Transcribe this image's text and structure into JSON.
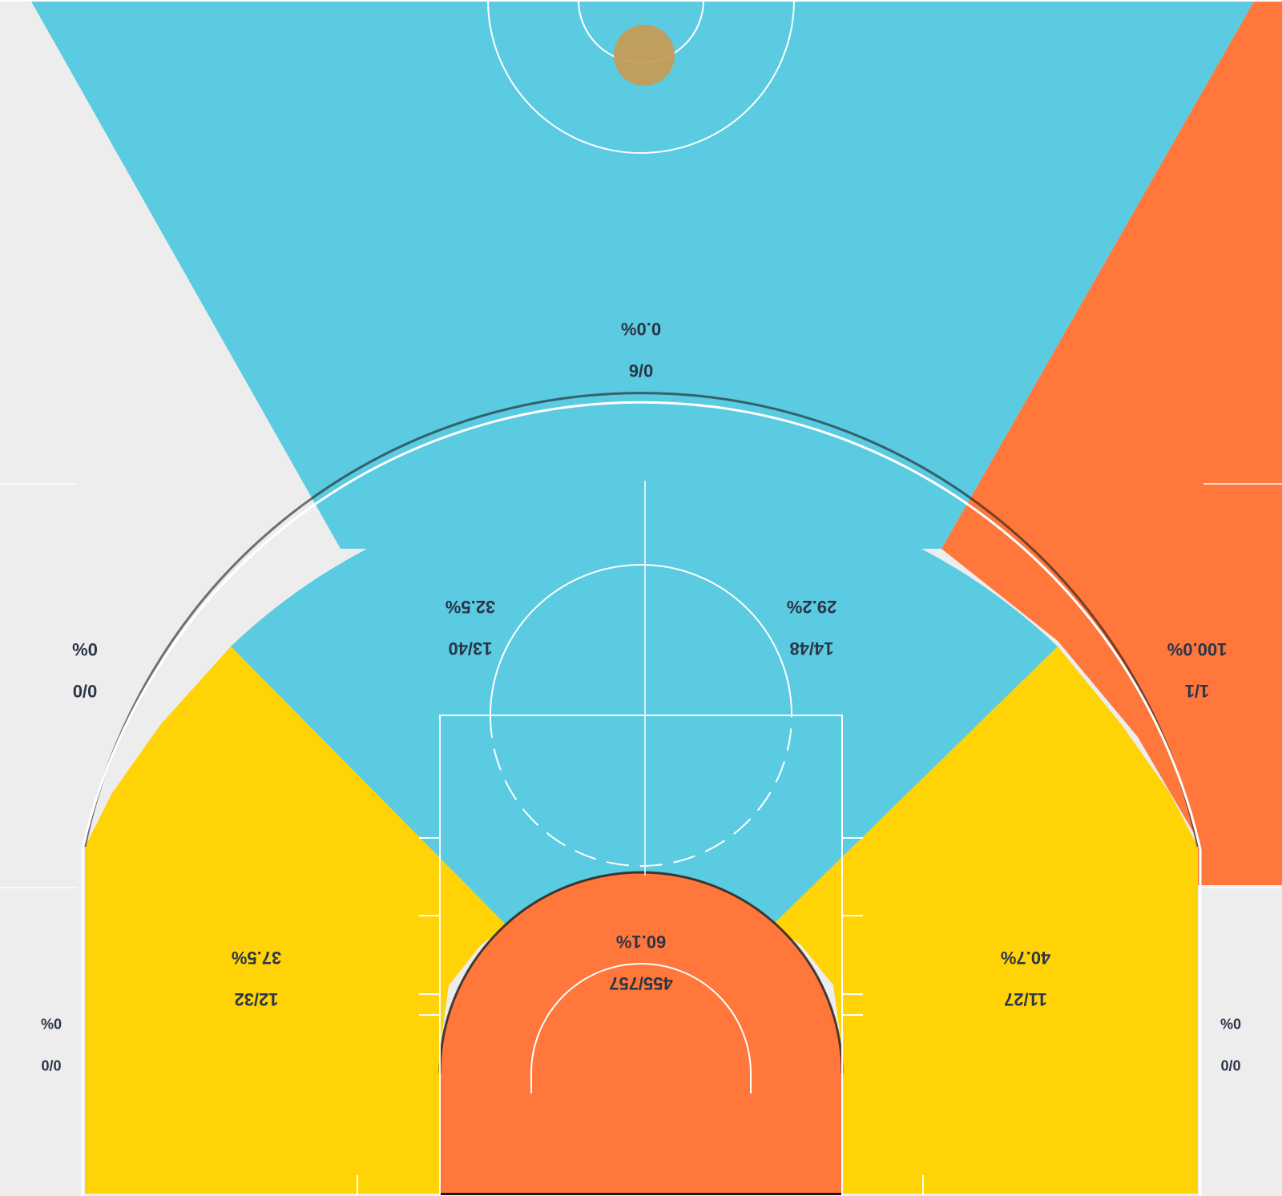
{
  "chart_data": {
    "type": "shot_chart",
    "orientation": "inverted",
    "colors": {
      "background": "#ededed",
      "cold": "#5acbe0",
      "average": "#ffd305",
      "hot": "#ff773b",
      "lines": "#ffffff",
      "text": "#2c3548",
      "ball": "#c89a52"
    },
    "zones": [
      {
        "id": "restricted_area",
        "made_attempts": "455/757",
        "pct": "60.1%",
        "heat": "hot"
      },
      {
        "id": "mid_range_left",
        "made_attempts": "14/48",
        "pct": "29.2%",
        "heat": "cold"
      },
      {
        "id": "mid_range_right",
        "made_attempts": "13/40",
        "pct": "32.5%",
        "heat": "cold"
      },
      {
        "id": "mid_range_wing_left",
        "made_attempts": "11/27",
        "pct": "40.7%",
        "heat": "average"
      },
      {
        "id": "mid_range_wing_right",
        "made_attempts": "12/32",
        "pct": "37.5%",
        "heat": "average"
      },
      {
        "id": "above_break_3_center",
        "made_attempts": "0/6",
        "pct": "0.0%",
        "heat": "cold"
      },
      {
        "id": "above_break_3_left",
        "made_attempts": "1/1",
        "pct": "100.0%",
        "heat": "hot"
      },
      {
        "id": "above_break_3_right",
        "made_attempts": "0/0",
        "pct": "0%",
        "heat": "none"
      },
      {
        "id": "corner_3_left",
        "made_attempts": "0/0",
        "pct": "0%",
        "heat": "none"
      },
      {
        "id": "corner_3_right",
        "made_attempts": "0/0",
        "pct": "0%",
        "heat": "none"
      }
    ]
  }
}
